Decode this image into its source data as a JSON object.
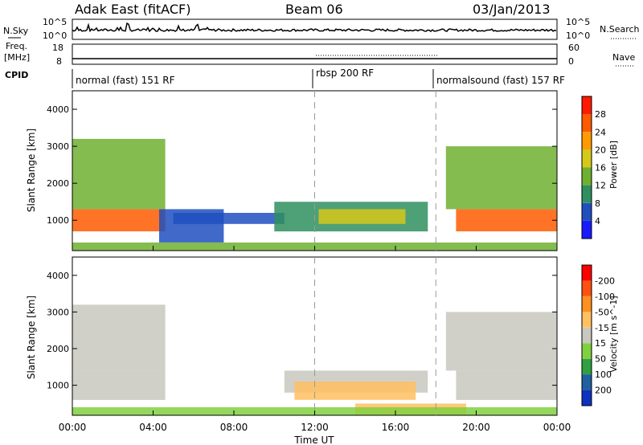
{
  "header": {
    "station": "Adak East (fitACF)",
    "beam": "Beam 06",
    "date": "03/Jan/2013"
  },
  "noise_panel": {
    "left_label": "N.Sky",
    "left_ticks": [
      "10^5",
      "10^0"
    ],
    "right_label": "N.Search",
    "right_ticks": [
      "10^5",
      "10^0"
    ]
  },
  "freq_panel": {
    "left_label_1": "Freq.",
    "left_label_2": "[MHz]",
    "left_ticks": [
      "18",
      "8"
    ],
    "right_label": "Nave",
    "right_ticks": [
      "60",
      "0"
    ]
  },
  "cpid_panel": {
    "label": "CPID",
    "segments": [
      "normal (fast) 151 RF",
      "rbsp 200 RF",
      "normalsound (fast) 157 RF"
    ]
  },
  "chart_data": [
    {
      "type": "heatmap",
      "name": "power",
      "ylabel": "Slant Range [km]",
      "yticks": [
        "4000",
        "3000",
        "2000",
        "1000"
      ],
      "ylim": [
        180,
        4500
      ],
      "xlim": [
        0,
        24
      ],
      "colorbar": {
        "label": "Power [dB]",
        "ticks": [
          "4",
          "8",
          "12",
          "16",
          "20",
          "24",
          "28"
        ],
        "colors": [
          "#1a1aff",
          "#1f4fbf",
          "#2f8f5f",
          "#6fb030",
          "#d6c81a",
          "#ff9a00",
          "#ff5a00",
          "#ff1a00"
        ]
      },
      "regions": [
        {
          "t0": 0.0,
          "t1": 4.6,
          "r0": 700,
          "r1": 1300,
          "level": 26
        },
        {
          "t0": 0.0,
          "t1": 4.6,
          "r0": 1300,
          "r1": 3200,
          "level": 14
        },
        {
          "t0": 4.3,
          "t1": 7.5,
          "r0": 400,
          "r1": 1300,
          "level": 6
        },
        {
          "t0": 5.0,
          "t1": 10.5,
          "r0": 900,
          "r1": 1200,
          "level": 5
        },
        {
          "t0": 10.0,
          "t1": 17.6,
          "r0": 700,
          "r1": 1500,
          "level": 9
        },
        {
          "t0": 12.2,
          "t1": 16.5,
          "r0": 900,
          "r1": 1300,
          "level": 18
        },
        {
          "t0": 0.0,
          "t1": 24.0,
          "r0": 180,
          "r1": 400,
          "level": 12
        },
        {
          "t0": 19.0,
          "t1": 24.0,
          "r0": 700,
          "r1": 1300,
          "level": 25
        },
        {
          "t0": 18.5,
          "t1": 24.0,
          "r0": 1300,
          "r1": 3000,
          "level": 14
        }
      ]
    },
    {
      "type": "heatmap",
      "name": "velocity",
      "ylabel": "Slant Range [km]",
      "yticks": [
        "4000",
        "3000",
        "2000",
        "1000"
      ],
      "ylim": [
        180,
        4500
      ],
      "xlim": [
        0,
        24
      ],
      "colorbar": {
        "label": "Velocity [m s^-1]",
        "ticks": [
          "200",
          "100",
          "50",
          "15",
          "-15",
          "-50",
          "-100",
          "-200"
        ],
        "colors": [
          "#1030c0",
          "#2060a0",
          "#30a040",
          "#80d040",
          "#c8c8c0",
          "#ffc060",
          "#ff9020",
          "#ff5010",
          "#ff0000"
        ]
      },
      "regions": [
        {
          "t0": 0.0,
          "t1": 4.6,
          "r0": 600,
          "r1": 1400,
          "level": 0
        },
        {
          "t0": 0.0,
          "t1": 4.6,
          "r0": 1400,
          "r1": 3200,
          "level": 5
        },
        {
          "t0": 10.5,
          "t1": 17.6,
          "r0": 800,
          "r1": 1400,
          "level": 0
        },
        {
          "t0": 11.0,
          "t1": 17.0,
          "r0": 600,
          "r1": 1100,
          "level": -40
        },
        {
          "t0": 14.0,
          "t1": 19.5,
          "r0": 180,
          "r1": 500,
          "level": -45
        },
        {
          "t0": 0.0,
          "t1": 24.0,
          "r0": 180,
          "r1": 400,
          "level": 30
        },
        {
          "t0": 19.0,
          "t1": 24.0,
          "r0": 600,
          "r1": 1400,
          "level": 0
        },
        {
          "t0": 18.5,
          "t1": 24.0,
          "r0": 1400,
          "r1": 3000,
          "level": 8
        }
      ]
    }
  ],
  "x_axis": {
    "ticks": [
      "00:00",
      "04:00",
      "08:00",
      "12:00",
      "16:00",
      "20:00",
      "00:00"
    ],
    "label": "Time UT"
  }
}
